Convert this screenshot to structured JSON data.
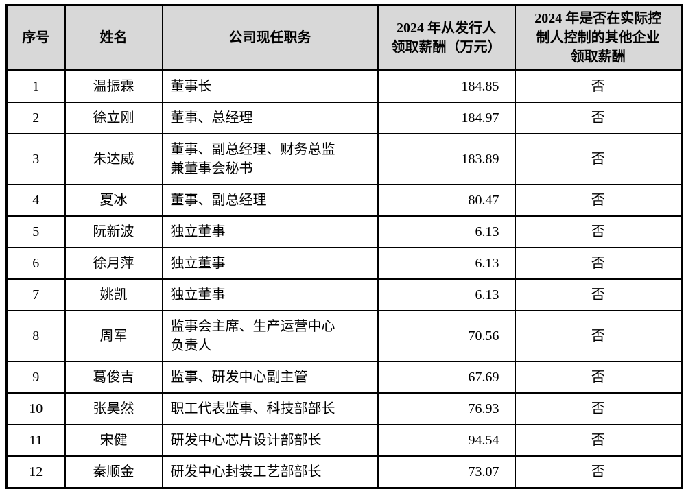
{
  "table": {
    "header_bg": "#d8d8d8",
    "border_color": "#000000",
    "columns": [
      {
        "key": "no",
        "label": "序号"
      },
      {
        "key": "name",
        "label": "姓名"
      },
      {
        "key": "position",
        "label": "公司现任职务"
      },
      {
        "key": "salary",
        "label": "2024 年从发行人\n领取薪酬（万元）"
      },
      {
        "key": "other",
        "label": "2024 年是否在实际控\n制人控制的其他企业\n领取薪酬"
      }
    ],
    "rows": [
      {
        "no": "1",
        "name": "温振霖",
        "position": "董事长",
        "salary": "184.85",
        "other": "否"
      },
      {
        "no": "2",
        "name": "徐立刚",
        "position": "董事、总经理",
        "salary": "184.97",
        "other": "否"
      },
      {
        "no": "3",
        "name": "朱达威",
        "position": "董事、副总经理、财务总监\n兼董事会秘书",
        "salary": "183.89",
        "other": "否"
      },
      {
        "no": "4",
        "name": "夏冰",
        "position": "董事、副总经理",
        "salary": "80.47",
        "other": "否"
      },
      {
        "no": "5",
        "name": "阮新波",
        "position": "独立董事",
        "salary": "6.13",
        "other": "否"
      },
      {
        "no": "6",
        "name": "徐月萍",
        "position": "独立董事",
        "salary": "6.13",
        "other": "否"
      },
      {
        "no": "7",
        "name": "姚凯",
        "position": "独立董事",
        "salary": "6.13",
        "other": "否"
      },
      {
        "no": "8",
        "name": "周军",
        "position": "监事会主席、生产运营中心\n负责人",
        "salary": "70.56",
        "other": "否"
      },
      {
        "no": "9",
        "name": "葛俊吉",
        "position": "监事、研发中心副主管",
        "salary": "67.69",
        "other": "否"
      },
      {
        "no": "10",
        "name": "张昊然",
        "position": "职工代表监事、科技部部长",
        "salary": "76.93",
        "other": "否"
      },
      {
        "no": "11",
        "name": "宋健",
        "position": "研发中心芯片设计部部长",
        "salary": "94.54",
        "other": "否"
      },
      {
        "no": "12",
        "name": "秦顺金",
        "position": "研发中心封装工艺部部长",
        "salary": "73.07",
        "other": "否"
      }
    ]
  }
}
